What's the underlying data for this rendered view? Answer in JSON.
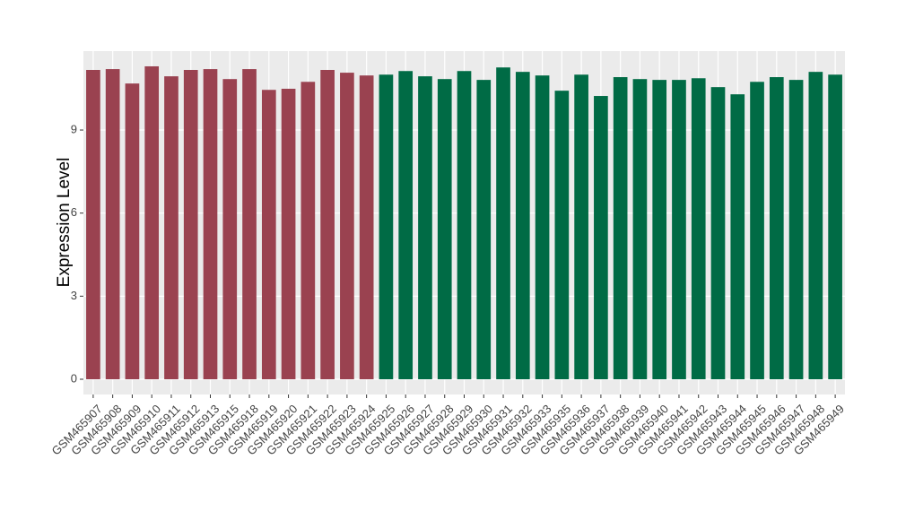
{
  "chart_data": {
    "type": "bar",
    "y_label": "Expression Level",
    "categories": [
      "GSM465907",
      "GSM465908",
      "GSM465909",
      "GSM465910",
      "GSM465911",
      "GSM465912",
      "GSM465913",
      "GSM465915",
      "GSM465918",
      "GSM465919",
      "GSM465920",
      "GSM465921",
      "GSM465922",
      "GSM465923",
      "GSM465924",
      "GSM465925",
      "GSM465926",
      "GSM465927",
      "GSM465928",
      "GSM465929",
      "GSM465930",
      "GSM465931",
      "GSM465932",
      "GSM465933",
      "GSM465935",
      "GSM465936",
      "GSM465937",
      "GSM465938",
      "GSM465939",
      "GSM465940",
      "GSM465941",
      "GSM465942",
      "GSM465943",
      "GSM465944",
      "GSM465945",
      "GSM465946",
      "GSM465947",
      "GSM465948",
      "GSM465949"
    ],
    "values": [
      11.17,
      11.2,
      10.68,
      11.3,
      10.94,
      11.17,
      11.2,
      10.84,
      11.2,
      10.45,
      10.49,
      10.74,
      11.17,
      11.07,
      10.97,
      11.0,
      11.13,
      10.94,
      10.84,
      11.13,
      10.81,
      11.26,
      11.1,
      10.97,
      10.42,
      11.0,
      10.23,
      10.91,
      10.84,
      10.81,
      10.81,
      10.87,
      10.55,
      10.29,
      10.74,
      10.91,
      10.81,
      11.1,
      11.0
    ],
    "colors": [
      "#9a4250",
      "#9a4250",
      "#9a4250",
      "#9a4250",
      "#9a4250",
      "#9a4250",
      "#9a4250",
      "#9a4250",
      "#9a4250",
      "#9a4250",
      "#9a4250",
      "#9a4250",
      "#9a4250",
      "#9a4250",
      "#9a4250",
      "#006b45",
      "#006b45",
      "#006b45",
      "#006b45",
      "#006b45",
      "#006b45",
      "#006b45",
      "#006b45",
      "#006b45",
      "#006b45",
      "#006b45",
      "#006b45",
      "#006b45",
      "#006b45",
      "#006b45",
      "#006b45",
      "#006b45",
      "#006b45",
      "#006b45",
      "#006b45",
      "#006b45",
      "#006b45",
      "#006b45",
      "#006b45"
    ],
    "ylim": [
      -0.55,
      11.85
    ],
    "yticks": [
      0,
      3,
      6,
      9
    ],
    "grid": true
  }
}
